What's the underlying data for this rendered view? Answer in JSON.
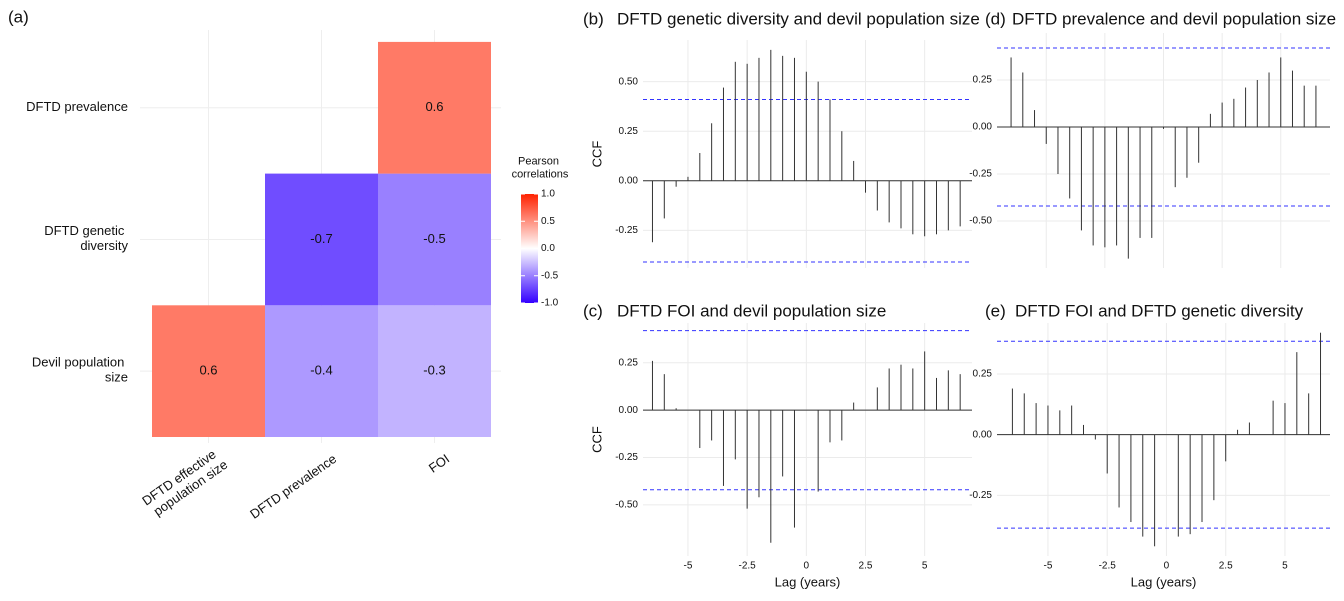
{
  "chart_data": [
    {
      "type": "heatmap",
      "panel_label": "(a)",
      "x_categories": [
        "DFTD effective population size",
        "DFTD prevalence",
        "FOI"
      ],
      "y_categories": [
        "Devil population size",
        "DFTD genetic diversity",
        "DFTD prevalence"
      ],
      "values": [
        [
          0.6,
          -0.4,
          -0.3
        ],
        [
          null,
          -0.7,
          -0.5
        ],
        [
          null,
          null,
          0.6
        ]
      ],
      "legend_title": "Pearson correlations",
      "colorscale": [
        "#3300ff",
        "#ffffff",
        "#ff2200"
      ],
      "clim": [
        -1,
        1
      ],
      "cticks": [
        {
          "value": -1,
          "label": "-1.0"
        },
        -0.5,
        {
          "value": 0,
          "label": "0.0"
        },
        0.5,
        {
          "value": 1,
          "label": "1.0"
        }
      ]
    },
    {
      "type": "ccf",
      "panel_label": "(b)",
      "title": "DFTD genetic diversity and devil population size",
      "y_label": "CCF",
      "x": [
        -6.5,
        -6,
        -5.5,
        -5,
        -4.5,
        -4,
        -3.5,
        -3,
        -2.5,
        -2,
        -1.5,
        -1,
        -0.5,
        0,
        0.5,
        1,
        1.5,
        2,
        2.5,
        3,
        3.5,
        4,
        4.5,
        5,
        5.5,
        6,
        6.5
      ],
      "values": [
        -0.31,
        -0.19,
        -0.03,
        0.02,
        0.14,
        0.29,
        0.47,
        0.6,
        0.59,
        0.62,
        0.66,
        0.63,
        0.62,
        0.55,
        0.5,
        0.41,
        0.25,
        0.1,
        -0.06,
        -0.15,
        -0.21,
        -0.24,
        -0.27,
        -0.28,
        -0.27,
        -0.25,
        -0.23
      ],
      "color": "#333333",
      "ci": [
        0.41,
        -0.41
      ],
      "ci_color": "#3333ff",
      "xlim": [
        -6.9,
        7.0
      ],
      "ylim": [
        -0.44,
        0.71
      ],
      "xticks": [
        -5,
        -2.5,
        0,
        2.5,
        5
      ],
      "x_tick_labels": false,
      "yticks": [
        -0.25,
        {
          "value": 0,
          "label": "0.00"
        },
        0.25,
        {
          "value": 0.5,
          "label": "0.50"
        }
      ],
      "grid": true
    },
    {
      "type": "ccf",
      "panel_label": "(d)",
      "title": "DFTD prevalence and devil population size",
      "x": [
        -6.5,
        -6,
        -5.5,
        -5,
        -4.5,
        -4,
        -3.5,
        -3,
        -2.5,
        -2,
        -1.5,
        -1,
        -0.5,
        0,
        0.5,
        1,
        1.5,
        2,
        2.5,
        3,
        3.5,
        4,
        4.5,
        5,
        5.5,
        6,
        6.5
      ],
      "values": [
        0.37,
        0.29,
        0.09,
        -0.09,
        -0.25,
        -0.38,
        -0.55,
        -0.63,
        -0.64,
        -0.63,
        -0.7,
        -0.59,
        -0.59,
        -0.01,
        -0.32,
        -0.27,
        -0.19,
        0.07,
        0.13,
        0.15,
        0.21,
        0.25,
        0.29,
        0.37,
        0.3,
        0.22,
        0.22
      ],
      "color": "#333333",
      "ci": [
        0.42,
        -0.42
      ],
      "ci_color": "#3333ff",
      "xlim": [
        -7.1,
        7.1
      ],
      "ylim": [
        -0.75,
        0.5
      ],
      "xticks": [
        -5,
        -2.5,
        0,
        2.5,
        5
      ],
      "x_tick_labels": false,
      "yticks": [
        {
          "value": -0.5,
          "label": "-0.50"
        },
        -0.25,
        {
          "value": 0,
          "label": "0.00"
        },
        0.25
      ],
      "grid": true
    },
    {
      "type": "ccf",
      "panel_label": "(c)",
      "title": "DFTD FOI and devil population size",
      "y_label": "CCF",
      "x_label": "Lag (years)",
      "x": [
        -6.5,
        -6,
        -5.5,
        -5,
        -4.5,
        -4,
        -3.5,
        -3,
        -2.5,
        -2,
        -1.5,
        -1,
        -0.5,
        0,
        0.5,
        1,
        1.5,
        2,
        2.5,
        3,
        3.5,
        4,
        4.5,
        5,
        5.5,
        6,
        6.5
      ],
      "values": [
        0.26,
        0.19,
        0.01,
        0,
        -0.2,
        -0.16,
        -0.4,
        -0.26,
        -0.52,
        -0.46,
        -0.7,
        -0.35,
        -0.62,
        0,
        -0.43,
        -0.17,
        -0.16,
        0.04,
        0,
        0.12,
        0.22,
        0.24,
        0.22,
        0.31,
        0.17,
        0.21,
        0.19
      ],
      "color": "#333333",
      "ci": [
        0.42,
        -0.42
      ],
      "ci_color": "#3333ff",
      "xlim": [
        -6.9,
        7.0
      ],
      "ylim": [
        -0.77,
        0.46
      ],
      "xticks": [
        -5,
        -2.5,
        0,
        2.5,
        5
      ],
      "x_tick_labels": true,
      "yticks": [
        {
          "value": -0.5,
          "label": "-0.50"
        },
        -0.25,
        {
          "value": 0,
          "label": "0.00"
        },
        0.25
      ],
      "grid": true
    },
    {
      "type": "ccf",
      "panel_label": "(e)",
      "title": "DFTD FOI and DFTD genetic diversity",
      "x_label": "Lag (years)",
      "x": [
        -6.5,
        -6,
        -5.5,
        -5,
        -4.5,
        -4,
        -3.5,
        -3,
        -2.5,
        -2,
        -1.5,
        -1,
        -0.5,
        0,
        0.5,
        1,
        1.5,
        2,
        2.5,
        3,
        3.5,
        4,
        4.5,
        5,
        5.5,
        6,
        6.5
      ],
      "values": [
        0.19,
        0.17,
        0.13,
        0.12,
        0.1,
        0.12,
        0.04,
        -0.02,
        -0.16,
        -0.3,
        -0.36,
        -0.42,
        -0.46,
        0,
        -0.42,
        -0.41,
        -0.36,
        -0.27,
        -0.11,
        0.02,
        0.05,
        null,
        0.14,
        0.13,
        0.34,
        0.17,
        0.42
      ],
      "color": "#333333",
      "ci": [
        0.385,
        -0.385
      ],
      "ci_color": "#3333ff",
      "xlim": [
        -7.15,
        6.9
      ],
      "ylim": [
        -0.5,
        0.46
      ],
      "xticks": [
        -5,
        -2.5,
        0,
        2.5,
        5
      ],
      "x_tick_labels": true,
      "yticks": [
        -0.25,
        {
          "value": 0,
          "label": "0.00"
        },
        0.25
      ],
      "grid": true
    }
  ]
}
